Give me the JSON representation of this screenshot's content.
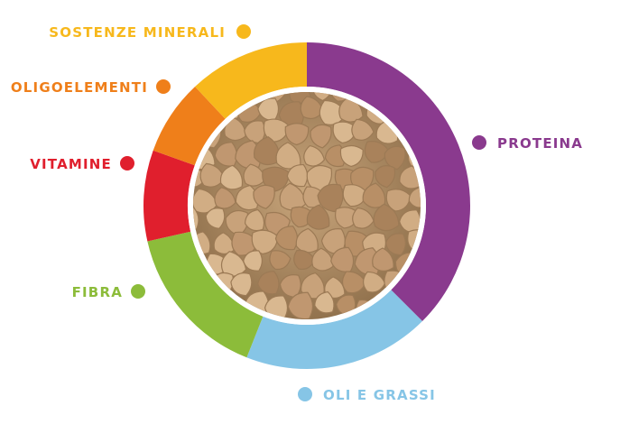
{
  "chart_data": {
    "type": "pie",
    "style": "donut",
    "categories": [
      "PROTEINA",
      "OLI E GRASSI",
      "FIBRA",
      "VITAMINE",
      "OLIGOELEMENTI",
      "SOSTENZE MINERALI"
    ],
    "values": [
      37.5,
      18.5,
      15.5,
      9,
      7.5,
      12
    ],
    "colors": [
      "#8a3a8e",
      "#86c5e6",
      "#8cbc3a",
      "#e01f2d",
      "#ef7f1a",
      "#f7b81c"
    ],
    "center_image": "dry-pet-food-kibble-photo"
  }
}
